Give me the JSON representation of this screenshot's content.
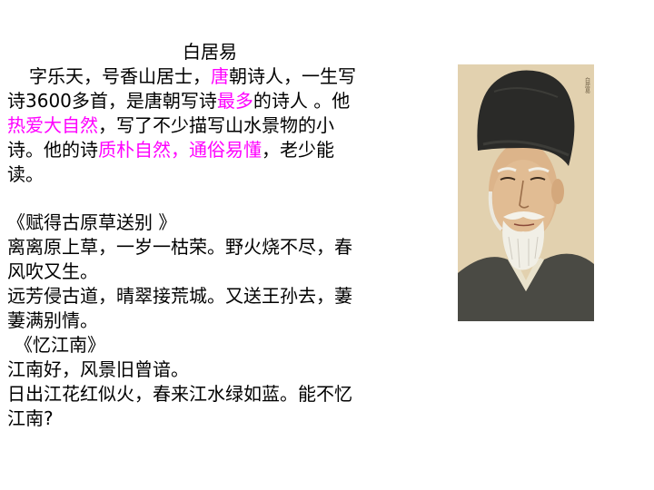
{
  "title": "白居易",
  "intro": {
    "line1": [
      "字乐天，号香山居士，",
      "唐",
      "朝诗人，一生写"
    ],
    "line2": [
      "诗3600多首，是唐朝写诗",
      "最多",
      "的诗人 。他"
    ],
    "line3": [
      "热爱大自然",
      "，写了不少描写山水景物的小"
    ],
    "line4": [
      "诗。他的诗",
      "质朴自然，通俗易懂",
      "，老少能"
    ],
    "line5": "读。"
  },
  "poem1": {
    "title": "《赋得古原草送别 》",
    "lines": [
      "离离原上草，一岁一枯荣。野火烧不尽，春",
      "风吹又生。",
      "远芳侵古道，晴翠接荒城。又送王孙去，萋",
      "萋满别情。"
    ]
  },
  "poem2": {
    "title": "《忆江南》",
    "lines": [
      "江南好，风景旧曾谙。",
      "日出江花红似火，春来江水绿如蓝。能不忆",
      "江南?"
    ]
  },
  "portrait": {
    "inscription": "白居易"
  },
  "colors": {
    "highlight": "#ff00ff",
    "text": "#000000",
    "background": "#ffffff"
  }
}
